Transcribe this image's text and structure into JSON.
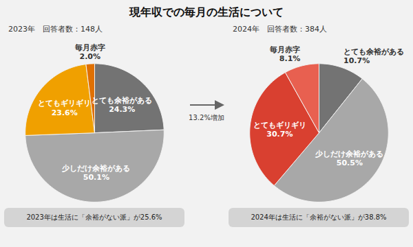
{
  "title": "現年収での毎月の生活について",
  "annotations": [
    "13.2%増加"
  ],
  "chart_data": [
    {
      "type": "pie",
      "subtitle": "2023年　回答者数：148人",
      "categories": [
        "とても余裕がある",
        "少しだけ余裕がある",
        "とてもギリギリ",
        "毎月赤字"
      ],
      "values": [
        24.3,
        50.1,
        23.6,
        2.0
      ],
      "value_labels": [
        "24.3%",
        "50.1%",
        "23.6%",
        "2.0%"
      ],
      "colors": [
        "#737373",
        "#a8a8a8",
        "#f0a000",
        "#e07000"
      ],
      "data_labels": true,
      "annotations": [
        "2023年は生活に「余裕がない派」が25.6%"
      ]
    },
    {
      "type": "pie",
      "subtitle": "2024年　回答者数：384人",
      "categories": [
        "とても余裕がある",
        "少しだけ余裕がある",
        "とてもギリギリ",
        "毎月赤字"
      ],
      "values": [
        10.7,
        50.5,
        30.7,
        8.1
      ],
      "value_labels": [
        "10.7%",
        "50.5%",
        "30.7%",
        "8.1%"
      ],
      "colors": [
        "#737373",
        "#a8a8a8",
        "#d94030",
        "#e86050"
      ],
      "data_labels": true,
      "annotations": [
        "2024年は生活に「余裕がない派」が38.8%"
      ]
    }
  ]
}
